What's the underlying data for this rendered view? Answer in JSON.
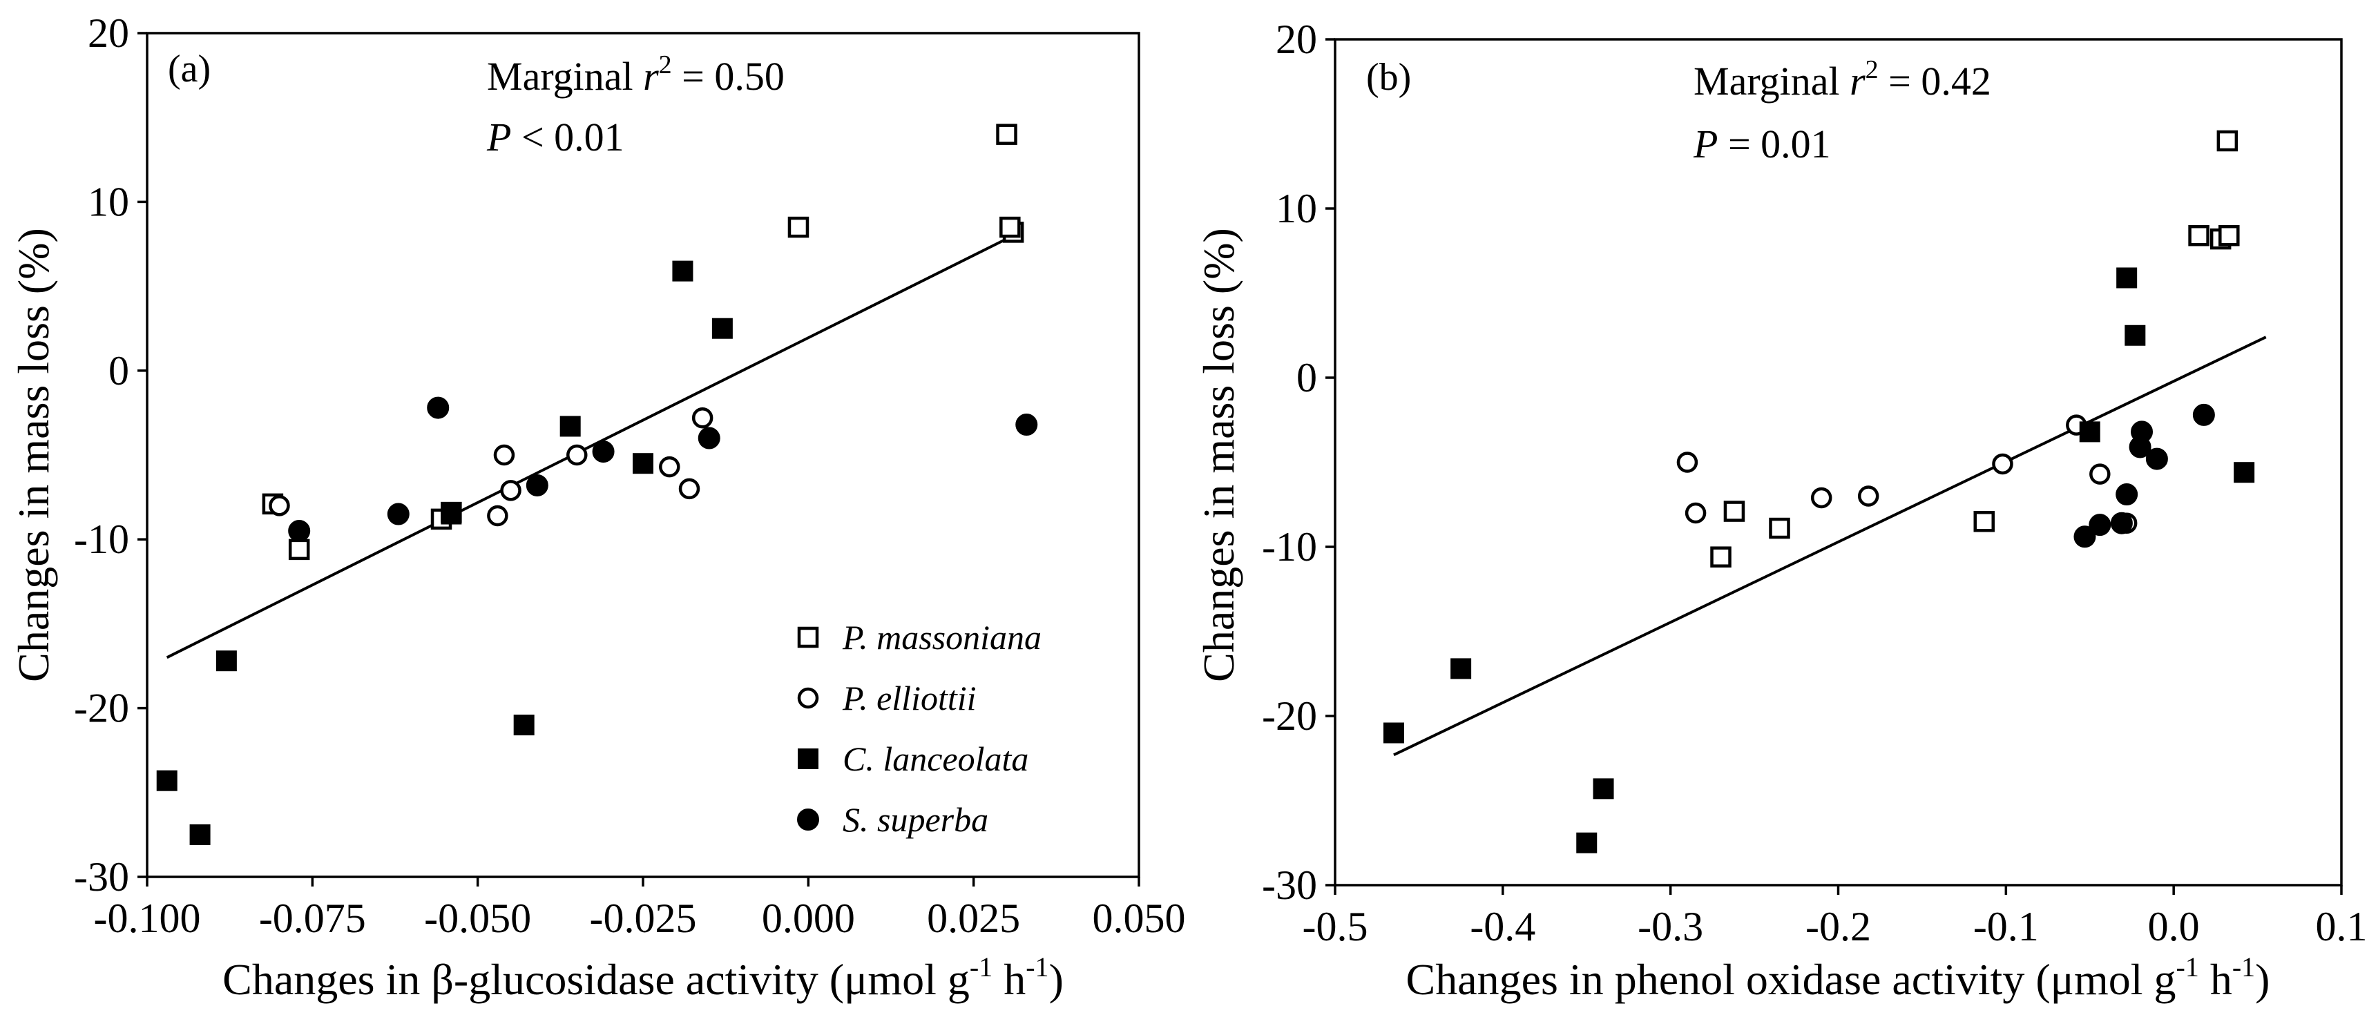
{
  "chart_data": [
    {
      "type": "scatter",
      "panel_label": "(a)",
      "xlabel": "Changes in β-glucosidase activity (μmol g-1 h-1)",
      "xlabel_parts": {
        "main": "Changes in β-glucosidase activity (μmol g",
        "sup1": "-1",
        "mid": " h",
        "sup2": "-1",
        "end": ")"
      },
      "ylabel": "Changes in mass loss (%)",
      "xlim": [
        -0.1,
        0.05
      ],
      "ylim": [
        -30,
        20
      ],
      "xticks": [
        -0.1,
        -0.075,
        -0.05,
        -0.025,
        0.0,
        0.025,
        0.05
      ],
      "xtick_labels": [
        "-0.100",
        "-0.075",
        "-0.050",
        "-0.025",
        "0.000",
        "0.025",
        "0.050"
      ],
      "yticks": [
        -30,
        -20,
        -10,
        0,
        10,
        20
      ],
      "ytick_labels": [
        "-30",
        "-20",
        "-10",
        "0",
        "10",
        "20"
      ],
      "annotation": {
        "line1_prefix": "Marginal ",
        "r": "r",
        "sup": "2",
        "line1_suffix": " = 0.50",
        "p": "P",
        "line2_suffix": " < 0.01"
      },
      "legend": {
        "position": "bottom-right",
        "entries": [
          {
            "label": "P. massoniana",
            "marker": "open-square"
          },
          {
            "label": "P. elliottii",
            "marker": "open-circle"
          },
          {
            "label": "C. lanceolata",
            "marker": "filled-square"
          },
          {
            "label": "S. superba",
            "marker": "filled-circle"
          }
        ]
      },
      "fit_line": {
        "x": [
          -0.097,
          0.032
        ],
        "y": [
          -17.0,
          8.2
        ]
      },
      "series": [
        {
          "name": "P. massoniana",
          "marker": "open-square",
          "x": [
            0.03,
            0.031,
            0.0305,
            -0.0015,
            -0.081,
            -0.077,
            -0.0555,
            -0.054
          ],
          "y": [
            14.0,
            8.2,
            8.5,
            8.5,
            -7.9,
            -10.6,
            -8.8,
            -8.4
          ]
        },
        {
          "name": "P. elliottii",
          "marker": "open-circle",
          "x": [
            -0.08,
            -0.046,
            -0.035,
            -0.045,
            -0.047,
            -0.021,
            -0.016,
            -0.018
          ],
          "y": [
            -8.0,
            -5.0,
            -5.0,
            -7.1,
            -8.6,
            -5.7,
            -2.8,
            -7.0
          ]
        },
        {
          "name": "C. lanceolata",
          "marker": "filled-square",
          "x": [
            -0.019,
            -0.013,
            -0.036,
            -0.025,
            -0.054,
            -0.043,
            -0.088,
            -0.097,
            -0.092
          ],
          "y": [
            5.9,
            2.5,
            -3.3,
            -5.5,
            -8.5,
            -21.0,
            -17.2,
            -24.3,
            -27.5
          ]
        },
        {
          "name": "S. superba",
          "marker": "filled-circle",
          "x": [
            -0.056,
            -0.015,
            0.033,
            -0.031,
            -0.041,
            -0.062,
            -0.077
          ],
          "y": [
            -2.2,
            -4.0,
            -3.2,
            -4.8,
            -6.8,
            -8.5,
            -9.5
          ]
        }
      ]
    },
    {
      "type": "scatter",
      "panel_label": "(b)",
      "xlabel": "Changes in phenol oxidase activity (μmol g-1 h-1)",
      "xlabel_parts": {
        "main": "Changes in phenol oxidase activity (μmol g",
        "sup1": "-1",
        "mid": " h",
        "sup2": "-1",
        "end": ")"
      },
      "ylabel": "Changes in mass loss (%)",
      "xlim": [
        -0.5,
        0.1
      ],
      "ylim": [
        -30,
        20
      ],
      "xticks": [
        -0.5,
        -0.4,
        -0.3,
        -0.2,
        -0.1,
        0.0,
        0.1
      ],
      "xtick_labels": [
        "-0.5",
        "-0.4",
        "-0.3",
        "-0.2",
        "-0.1",
        "0.0",
        "0.1"
      ],
      "yticks": [
        -30,
        -20,
        -10,
        0,
        10,
        20
      ],
      "ytick_labels": [
        "-30",
        "-20",
        "-10",
        "0",
        "10",
        "20"
      ],
      "annotation": {
        "line1_prefix": "Marginal ",
        "r": "r",
        "sup": "2",
        "line1_suffix": " = 0.42",
        "p": "P",
        "line2_suffix": " = 0.01"
      },
      "fit_line": {
        "x": [
          -0.465,
          0.055
        ],
        "y": [
          -22.3,
          2.4
        ]
      },
      "series": [
        {
          "name": "P. massoniana",
          "marker": "open-square",
          "x": [
            0.032,
            0.015,
            0.028,
            0.033,
            -0.113,
            -0.235,
            -0.262,
            -0.27
          ],
          "y": [
            14.0,
            8.4,
            8.2,
            8.4,
            -8.5,
            -8.9,
            -7.9,
            -10.6
          ]
        },
        {
          "name": "P. elliottii",
          "marker": "open-circle",
          "x": [
            -0.29,
            -0.285,
            -0.21,
            -0.182,
            -0.102,
            -0.058,
            -0.044,
            -0.028
          ],
          "y": [
            -5.0,
            -8.0,
            -7.1,
            -7.0,
            -5.1,
            -2.8,
            -5.7,
            -8.6
          ]
        },
        {
          "name": "C. lanceolata",
          "marker": "filled-square",
          "x": [
            -0.028,
            -0.023,
            -0.05,
            0.042,
            -0.425,
            -0.465,
            -0.34,
            -0.35
          ],
          "y": [
            5.9,
            2.5,
            -3.2,
            -5.6,
            -17.2,
            -21.0,
            -24.3,
            -27.5
          ]
        },
        {
          "name": "S. superba",
          "marker": "filled-circle",
          "x": [
            0.018,
            -0.019,
            -0.02,
            -0.01,
            -0.028,
            -0.053,
            -0.044,
            -0.031
          ],
          "y": [
            -2.2,
            -3.2,
            -4.1,
            -4.8,
            -6.9,
            -9.4,
            -8.7,
            -8.6
          ]
        }
      ]
    }
  ]
}
